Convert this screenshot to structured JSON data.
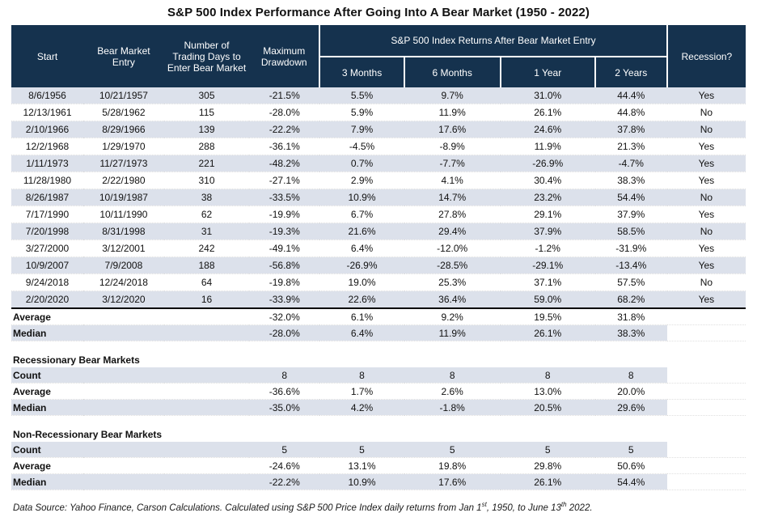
{
  "title": "S&P 500 Index Performance After Going Into A Bear Market (1950 - 2022)",
  "colors": {
    "header_bg": "#15324e",
    "header_text": "#ffffff",
    "row_stripe": "#dce1eb",
    "divider": "#000000"
  },
  "chart_data": {
    "type": "table",
    "title": "S&P 500 Index Performance After Going Into A Bear Market (1950 - 2022)",
    "group_header": "S&P 500 Index Returns After Bear Market Entry",
    "columns": [
      "Start",
      "Bear Market Entry",
      "Number of Trading Days to Enter Bear Market",
      "Maximum Drawdown",
      "3 Months",
      "6 Months",
      "1 Year",
      "2 Years",
      "Recession?"
    ],
    "rows": [
      [
        "8/6/1956",
        "10/21/1957",
        "305",
        "-21.5%",
        "5.5%",
        "9.7%",
        "31.0%",
        "44.4%",
        "Yes"
      ],
      [
        "12/13/1961",
        "5/28/1962",
        "115",
        "-28.0%",
        "5.9%",
        "11.9%",
        "26.1%",
        "44.8%",
        "No"
      ],
      [
        "2/10/1966",
        "8/29/1966",
        "139",
        "-22.2%",
        "7.9%",
        "17.6%",
        "24.6%",
        "37.8%",
        "No"
      ],
      [
        "12/2/1968",
        "1/29/1970",
        "288",
        "-36.1%",
        "-4.5%",
        "-8.9%",
        "11.9%",
        "21.3%",
        "Yes"
      ],
      [
        "1/11/1973",
        "11/27/1973",
        "221",
        "-48.2%",
        "0.7%",
        "-7.7%",
        "-26.9%",
        "-4.7%",
        "Yes"
      ],
      [
        "11/28/1980",
        "2/22/1980",
        "310",
        "-27.1%",
        "2.9%",
        "4.1%",
        "30.4%",
        "38.3%",
        "Yes"
      ],
      [
        "8/26/1987",
        "10/19/1987",
        "38",
        "-33.5%",
        "10.9%",
        "14.7%",
        "23.2%",
        "54.4%",
        "No"
      ],
      [
        "7/17/1990",
        "10/11/1990",
        "62",
        "-19.9%",
        "6.7%",
        "27.8%",
        "29.1%",
        "37.9%",
        "Yes"
      ],
      [
        "7/20/1998",
        "8/31/1998",
        "31",
        "-19.3%",
        "21.6%",
        "29.4%",
        "37.9%",
        "58.5%",
        "No"
      ],
      [
        "3/27/2000",
        "3/12/2001",
        "242",
        "-49.1%",
        "6.4%",
        "-12.0%",
        "-1.2%",
        "-31.9%",
        "Yes"
      ],
      [
        "10/9/2007",
        "7/9/2008",
        "188",
        "-56.8%",
        "-26.9%",
        "-28.5%",
        "-29.1%",
        "-13.4%",
        "Yes"
      ],
      [
        "9/24/2018",
        "12/24/2018",
        "64",
        "-19.8%",
        "19.0%",
        "25.3%",
        "37.1%",
        "57.5%",
        "No"
      ],
      [
        "2/20/2020",
        "3/12/2020",
        "16",
        "-33.9%",
        "22.6%",
        "36.4%",
        "59.0%",
        "68.2%",
        "Yes"
      ]
    ],
    "summary_rows": [
      {
        "label": "Average",
        "values": [
          "-32.0%",
          "6.1%",
          "9.2%",
          "19.5%",
          "31.8%"
        ],
        "shaded": false
      },
      {
        "label": "Median",
        "values": [
          "-28.0%",
          "6.4%",
          "11.9%",
          "26.1%",
          "38.3%"
        ],
        "shaded": true
      }
    ],
    "sections": [
      {
        "heading": "Recessionary Bear Markets",
        "rows": [
          {
            "label": "Count",
            "values": [
              "8",
              "8",
              "8",
              "8",
              "8"
            ],
            "shaded": true
          },
          {
            "label": "Average",
            "values": [
              "-36.6%",
              "1.7%",
              "2.6%",
              "13.0%",
              "20.0%"
            ],
            "shaded": false
          },
          {
            "label": "Median",
            "values": [
              "-35.0%",
              "4.2%",
              "-1.8%",
              "20.5%",
              "29.6%"
            ],
            "shaded": true
          }
        ]
      },
      {
        "heading": "Non-Recessionary Bear Markets",
        "rows": [
          {
            "label": "Count",
            "values": [
              "5",
              "5",
              "5",
              "5",
              "5"
            ],
            "shaded": true
          },
          {
            "label": "Average",
            "values": [
              "-24.6%",
              "13.1%",
              "19.8%",
              "29.8%",
              "50.6%"
            ],
            "shaded": false
          },
          {
            "label": "Median",
            "values": [
              "-22.2%",
              "10.9%",
              "17.6%",
              "26.1%",
              "54.4%"
            ],
            "shaded": true
          }
        ]
      }
    ],
    "footnote_parts": {
      "p1": "Data Source: Yahoo Finance, Carson Calculations. Calculated using S&P 500 Price Index daily returns from Jan 1",
      "sup1": "st",
      "p2": ", 1950, to June 13",
      "sup2": "th",
      "p3": "  2022."
    }
  }
}
